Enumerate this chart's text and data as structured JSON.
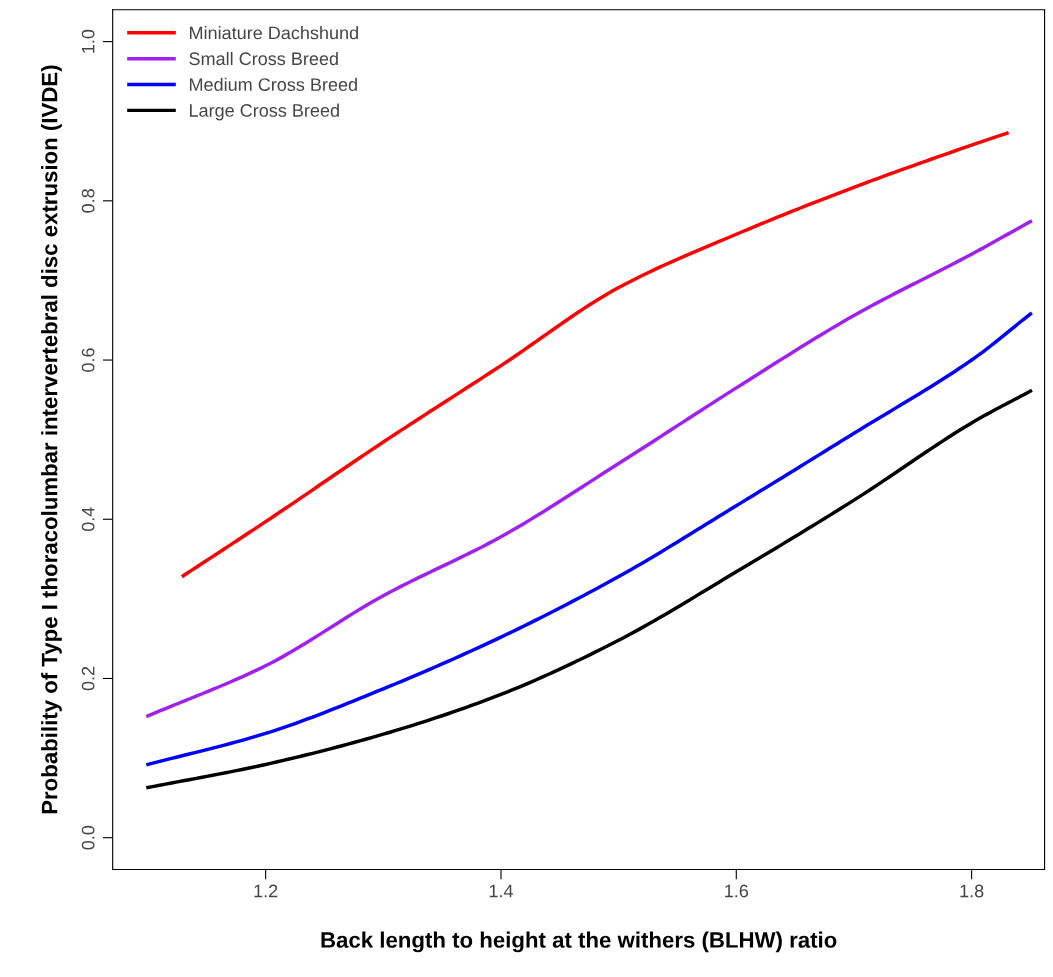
{
  "chart_data": {
    "type": "line",
    "xlabel": "Back length to height at the withers (BLHW) ratio",
    "ylabel": "Probability of Type I thoracolumbar intervertebral disc extrusion (IVDE)",
    "xlim": [
      1.07,
      1.862
    ],
    "xticks": [
      1.2,
      1.4,
      1.6,
      1.8
    ],
    "ylim": [
      -0.04,
      1.04
    ],
    "yticks": [
      {
        "value": 0,
        "label": "0.0"
      },
      0.2,
      0.4,
      0.6,
      0.8,
      {
        "value": 1,
        "label": "1.0"
      }
    ],
    "grid": false,
    "legend": "top left",
    "marker": "none",
    "line_style": "solid",
    "series": [
      {
        "name": "Miniature Dachshund",
        "color": "#ff0000",
        "x": [
          1.13,
          1.2,
          1.3,
          1.4,
          1.5,
          1.6,
          1.7,
          1.8,
          1.83
        ],
        "values": [
          0.329,
          0.397,
          0.497,
          0.593,
          0.691,
          0.758,
          0.817,
          0.87,
          0.885
        ]
      },
      {
        "name": "Small Cross Breed",
        "color": "#a020f0",
        "x": [
          1.1,
          1.2,
          1.3,
          1.4,
          1.5,
          1.6,
          1.7,
          1.8,
          1.85
        ],
        "values": [
          0.153,
          0.216,
          0.304,
          0.378,
          0.47,
          0.565,
          0.656,
          0.733,
          0.774
        ]
      },
      {
        "name": "Medium Cross Breed",
        "color": "#0000ff",
        "x": [
          1.1,
          1.2,
          1.3,
          1.4,
          1.5,
          1.6,
          1.7,
          1.8,
          1.85
        ],
        "values": [
          0.092,
          0.131,
          0.187,
          0.252,
          0.328,
          0.417,
          0.508,
          0.6,
          0.658
        ]
      },
      {
        "name": "Large Cross Breed",
        "color": "#000000",
        "x": [
          1.1,
          1.2,
          1.3,
          1.4,
          1.5,
          1.6,
          1.7,
          1.8,
          1.85
        ],
        "values": [
          0.063,
          0.092,
          0.13,
          0.18,
          0.248,
          0.334,
          0.424,
          0.521,
          0.561
        ]
      }
    ]
  }
}
